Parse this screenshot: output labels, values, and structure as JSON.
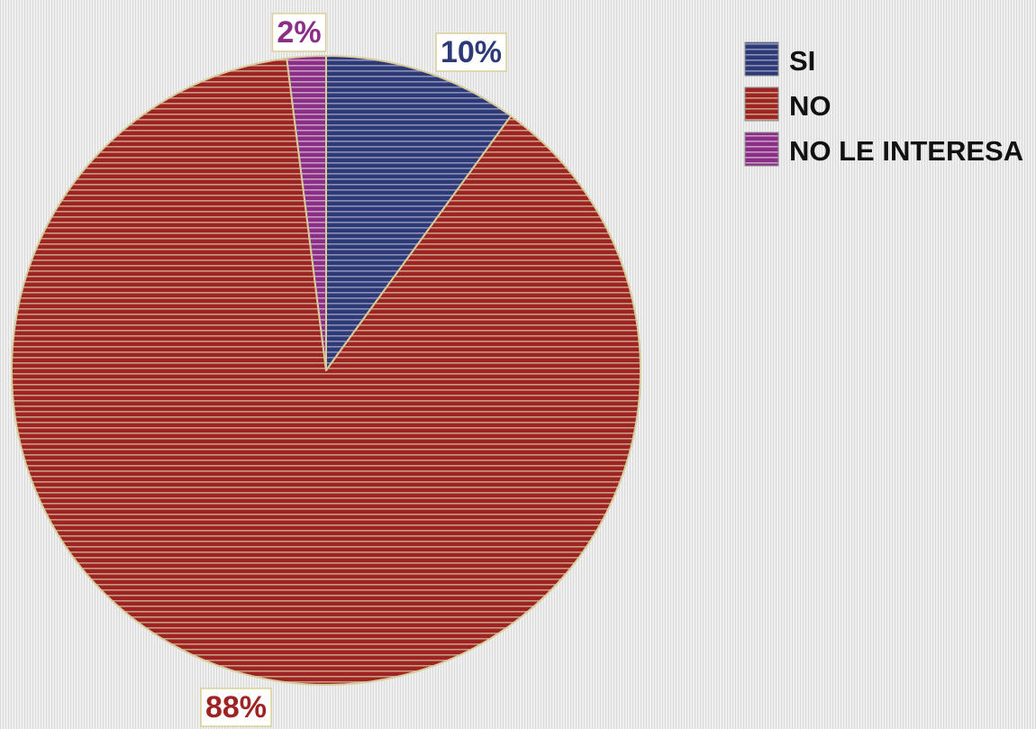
{
  "chart_data": {
    "type": "pie",
    "title": "",
    "slices": [
      {
        "label": "SI",
        "value": 10,
        "display": "10%",
        "color": "#2e3a78",
        "stripe": "#8c8fb4",
        "label_color": "#2e3a78"
      },
      {
        "label": "NO",
        "value": 88,
        "display": "88%",
        "color": "#9e2424",
        "stripe": "#c99a82",
        "label_color": "#9e2424"
      },
      {
        "label": "NO LE INTERESA",
        "value": 2,
        "display": "2%",
        "color": "#8a2e86",
        "stripe": "#c79bc4",
        "label_color": "#8a2e86"
      }
    ],
    "start_angle_deg": 0,
    "direction": "clockwise",
    "legend_position": "top-right",
    "label_box_border": "#d8d098",
    "slice_border": "#d8cc9a"
  }
}
